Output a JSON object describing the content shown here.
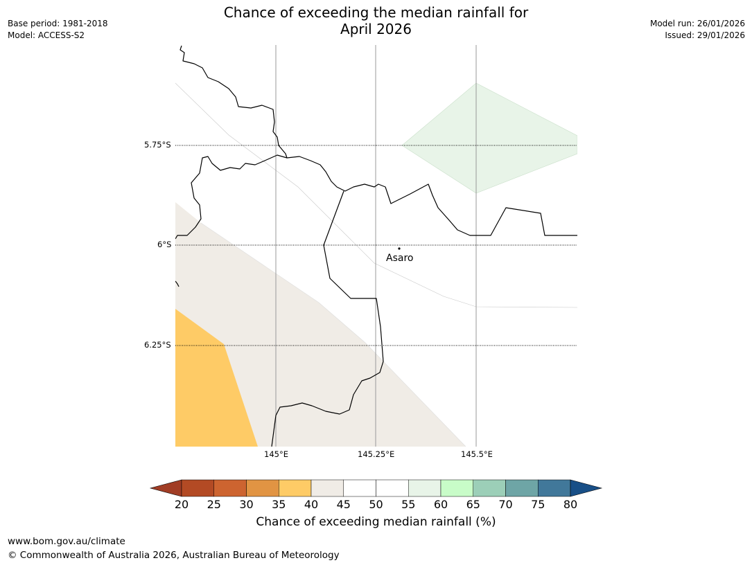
{
  "title_line1": "Chance of exceeding the median rainfall for",
  "title_line2": "April 2026",
  "meta_left": {
    "base_period": "Base period: 1981-2018",
    "model": "Model: ACCESS-S2"
  },
  "meta_right": {
    "model_run": "Model run: 26/01/2026",
    "issued": "Issued: 29/01/2026"
  },
  "map": {
    "lat_labels": [
      "5.75°S",
      "6°S",
      "6.25°S"
    ],
    "lon_labels": [
      "145°E",
      "145.25°E",
      "145.5°E"
    ],
    "place": "Asaro",
    "colors": {
      "band_40_45": "#f0ece6",
      "band_35_40": "#fecb66",
      "band_55_60": "#e8f4e8",
      "gridline": "#999999",
      "border": "#000000"
    }
  },
  "colorbar": {
    "ticks": [
      "20",
      "25",
      "30",
      "35",
      "40",
      "45",
      "50",
      "55",
      "60",
      "65",
      "70",
      "75",
      "80"
    ],
    "colors": [
      "#a13d25",
      "#b34a24",
      "#cd6430",
      "#e19443",
      "#fecb66",
      "#f0ece6",
      "#ffffff",
      "#ffffff",
      "#e8f4e8",
      "#c8fcc8",
      "#9ccfb8",
      "#6ea5a6",
      "#41789a",
      "#184f87"
    ],
    "title": "Chance of exceeding median rainfall (%)"
  },
  "footer": {
    "url": "www.bom.gov.au/climate",
    "copyright": "© Commonwealth of Australia 2026, Australian Bureau of Meteorology"
  }
}
